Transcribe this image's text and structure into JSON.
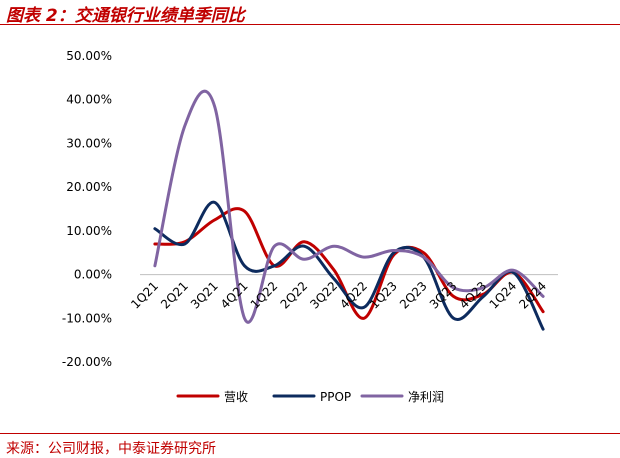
{
  "header": {
    "title": "图表 2：交通银行业绩单季同比"
  },
  "footer": {
    "source": "来源：公司财报，中泰证券研究所"
  },
  "chart_data": {
    "type": "line",
    "title": "图表 2：交通银行业绩单季同比",
    "xlabel": "",
    "ylabel": "",
    "categories": [
      "1Q21",
      "2Q21",
      "3Q21",
      "4Q21",
      "1Q22",
      "2Q22",
      "3Q22",
      "4Q22",
      "1Q23",
      "2Q23",
      "3Q23",
      "4Q23",
      "1Q24",
      "2Q24"
    ],
    "ylim": [
      -20,
      50
    ],
    "yticks": [
      50,
      40,
      30,
      20,
      10,
      0,
      -10,
      -20
    ],
    "ytick_labels": [
      "50.00%",
      "40.00%",
      "30.00%",
      "20.00%",
      "10.00%",
      "0.00%",
      "-10.00%",
      "-20.00%"
    ],
    "grid": false,
    "legend_position": "bottom",
    "series": [
      {
        "name": "营收",
        "color": "#c00000",
        "values": [
          7,
          7.5,
          12.5,
          14.5,
          2,
          7.5,
          1,
          -10,
          4.5,
          5,
          -5,
          -4.5,
          0.5,
          -8.5
        ]
      },
      {
        "name": "PPOP",
        "color": "#0d2b5e",
        "values": [
          10.5,
          7,
          16.5,
          2,
          2,
          6.5,
          -1,
          -7.5,
          5,
          4,
          -10,
          -5,
          0.5,
          -12.5
        ]
      },
      {
        "name": "净利润",
        "color": "#8064a2",
        "values": [
          2,
          34,
          38.5,
          -10,
          6.5,
          3.5,
          6.5,
          4,
          5.5,
          4,
          -3,
          -3,
          1,
          -5
        ]
      }
    ]
  }
}
